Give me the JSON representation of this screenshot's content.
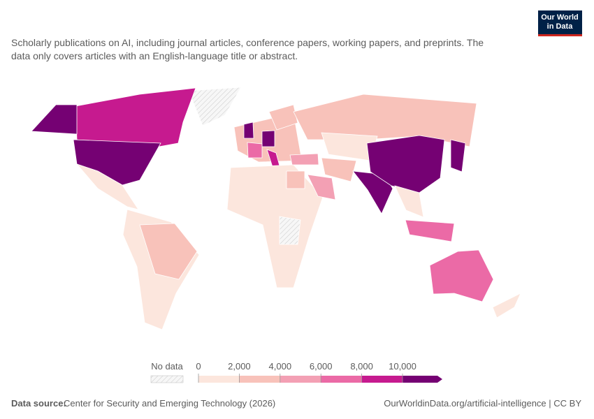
{
  "logo": {
    "lines": [
      "Our World",
      "in Data"
    ]
  },
  "subtitle": {
    "lines": [
      "Scholarly publications on AI, including journal articles, conference papers, working papers, and preprints. The",
      "data only covers articles with an English-language title or abstract."
    ]
  },
  "legend": {
    "no_data": "No data",
    "ticks": [
      0,
      {
        "value": 2000,
        "label": "2,000"
      },
      {
        "value": 4000,
        "label": "4,000"
      },
      {
        "value": 6000,
        "label": "6,000"
      },
      {
        "value": 8000,
        "label": "8,000"
      },
      {
        "value": 10000,
        "label": "10,000"
      }
    ],
    "colors": [
      "#fce6dd",
      "#f8c2ba",
      "#f3a0b4",
      "#eb6aa6",
      "#c61a8f",
      "#750173"
    ]
  },
  "footer": {
    "source_label": "Data source:",
    "source": "Center for Security and Emerging Technology (2026)",
    "url": "OurWorldinData.org/artificial-intelligence | CC BY"
  }
}
